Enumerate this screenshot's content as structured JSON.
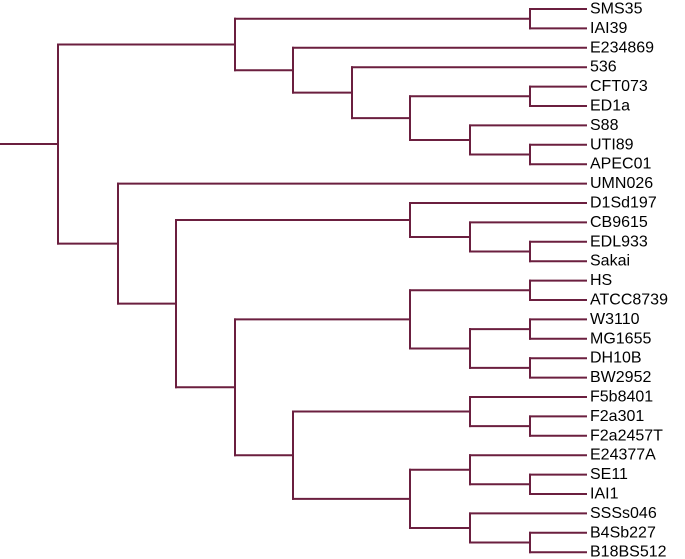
{
  "diagram": {
    "type": "phylogenetic-tree",
    "branch_color": "#6b1f3f",
    "leaves": [
      "SMS35",
      "IAI39",
      "E234869",
      "536",
      "CFT073",
      "ED1a",
      "S88",
      "UTI89",
      "APEC01",
      "UMN026",
      "D1Sd197",
      "CB9615",
      "EDL933",
      "Sakai",
      "HS",
      "ATCC8739",
      "W3110",
      "MG1655",
      "DH10B",
      "BW2952",
      "F5b8401",
      "F2a301",
      "F2a2457T",
      "E24377A",
      "SE11",
      "IAI1",
      "SSSs046",
      "B4Sb227",
      "B18BS512"
    ],
    "tree": [
      [
        [
          [
            "SMS35",
            "IAI39"
          ],
          [
            "E234869",
            [
              "536",
              [
                [
                  "CFT073",
                  "ED1a"
                ],
                [
                  "S88",
                  [
                    "UTI89",
                    "APEC01"
                  ]
                ]
              ]
            ]
          ]
        ],
        [
          "UMN026",
          [
            [
              "D1Sd197",
              [
                "CB9615",
                [
                  "EDL933",
                  "Sakai"
                ]
              ]
            ],
            [
              [
                [
                  "HS",
                  "ATCC8739"
                ],
                [
                  [
                    "W3110",
                    "MG1655"
                  ],
                  [
                    "DH10B",
                    "BW2952"
                  ]
                ]
              ],
              [
                [
                  "F5b8401",
                  [
                    "F2a301",
                    "F2a2457T"
                  ]
                ],
                [
                  [
                    "E24377A",
                    [
                      "SE11",
                      "IAI1"
                    ]
                  ],
                  [
                    "SSSs046",
                    [
                      "B4Sb227",
                      "B18BS512"
                    ]
                  ]
                ]
              ]
            ]
          ]
        ]
      ]
    ]
  }
}
